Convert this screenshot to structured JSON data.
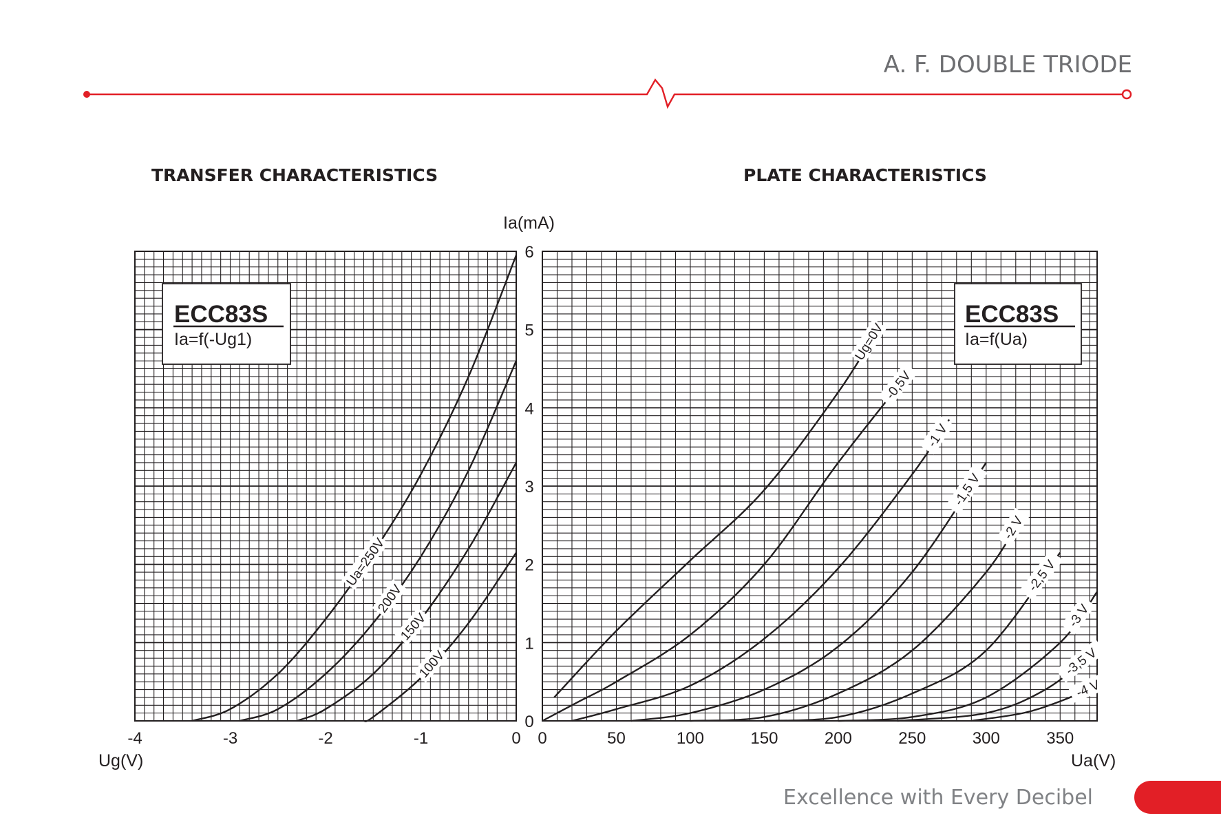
{
  "header": {
    "title": "A. F. DOUBLE TRIODE",
    "line_color": "#e21f26"
  },
  "footer": {
    "tagline": "Excellence with Every Decibel",
    "tab_color": "#e21f26"
  },
  "chart_data": [
    {
      "type": "line",
      "title": "TRANSFER CHARACTERISTICS",
      "xlabel": "Ug(V)",
      "ylabel": "Ia(mA)",
      "xlim": [
        -4,
        0
      ],
      "ylim": [
        0,
        6
      ],
      "xticks": [
        "-4",
        "-3",
        "-2",
        "-1",
        "0"
      ],
      "grid": true,
      "legend_box": {
        "title": "ECC83S",
        "subtitle": "Ia=f(-Ug1)",
        "position": "top-left"
      },
      "series": [
        {
          "name": "Ua=250V",
          "x": [
            -3.4,
            -3.0,
            -2.5,
            -2.0,
            -1.5,
            -1.0,
            -0.5,
            0.0
          ],
          "y": [
            0.0,
            0.15,
            0.6,
            1.3,
            2.15,
            3.15,
            4.4,
            5.95
          ]
        },
        {
          "name": "200V",
          "x": [
            -2.9,
            -2.5,
            -2.0,
            -1.5,
            -1.0,
            -0.5,
            0.0
          ],
          "y": [
            0.0,
            0.15,
            0.6,
            1.25,
            2.1,
            3.2,
            4.6
          ]
        },
        {
          "name": "150V",
          "x": [
            -2.3,
            -2.0,
            -1.5,
            -1.0,
            -0.5,
            0.0
          ],
          "y": [
            0.0,
            0.15,
            0.6,
            1.3,
            2.2,
            3.3
          ]
        },
        {
          "name": "100V",
          "x": [
            -1.6,
            -1.5,
            -1.0,
            -0.5,
            0.0
          ],
          "y": [
            0.0,
            0.05,
            0.55,
            1.25,
            2.15
          ]
        }
      ]
    },
    {
      "type": "line",
      "title": "PLATE CHARACTERISTICS",
      "xlabel": "Ua(V)",
      "ylabel": "Ia(mA)",
      "xlim": [
        0,
        375
      ],
      "ylim": [
        0,
        6
      ],
      "xticks": [
        "0",
        "50",
        "100",
        "150",
        "200",
        "250",
        "300",
        "350"
      ],
      "yticks": [
        "0",
        "1",
        "2",
        "3",
        "4",
        "5",
        "6"
      ],
      "grid": true,
      "legend_box": {
        "title": "ECC83S",
        "subtitle": "Ia=f(Ua)",
        "position": "top-right"
      },
      "series": [
        {
          "name": "Ug=0V",
          "x": [
            8,
            50,
            100,
            150,
            200,
            225
          ],
          "y": [
            0.3,
            1.15,
            2.05,
            2.95,
            4.2,
            4.95
          ]
        },
        {
          "name": "-0,5V",
          "x": [
            0,
            25,
            50,
            100,
            150,
            200,
            250
          ],
          "y": [
            0.0,
            0.25,
            0.5,
            1.1,
            2.0,
            3.3,
            4.5
          ]
        },
        {
          "name": "-1 V",
          "x": [
            20,
            50,
            100,
            150,
            200,
            250,
            275
          ],
          "y": [
            0.0,
            0.15,
            0.45,
            1.05,
            1.95,
            3.15,
            3.85
          ]
        },
        {
          "name": "-1,5 V",
          "x": [
            60,
            100,
            150,
            200,
            250,
            300
          ],
          "y": [
            0.0,
            0.1,
            0.4,
            0.95,
            1.9,
            3.3
          ]
        },
        {
          "name": "-2 V",
          "x": [
            100,
            150,
            200,
            250,
            300,
            325
          ],
          "y": [
            0.0,
            0.05,
            0.35,
            0.9,
            1.9,
            2.65
          ]
        },
        {
          "name": "-2,5 V",
          "x": [
            150,
            200,
            250,
            300,
            350
          ],
          "y": [
            0.0,
            0.05,
            0.35,
            0.9,
            2.15
          ]
        },
        {
          "name": "-3 V",
          "x": [
            200,
            250,
            300,
            350,
            375
          ],
          "y": [
            0.0,
            0.05,
            0.3,
            1.0,
            1.65
          ]
        },
        {
          "name": "-3,5 V",
          "x": [
            240,
            300,
            340,
            375
          ],
          "y": [
            0.0,
            0.1,
            0.4,
            0.9
          ]
        },
        {
          "name": "-4 V",
          "x": [
            290,
            325,
            350,
            375
          ],
          "y": [
            0.0,
            0.1,
            0.25,
            0.45
          ]
        }
      ]
    }
  ]
}
